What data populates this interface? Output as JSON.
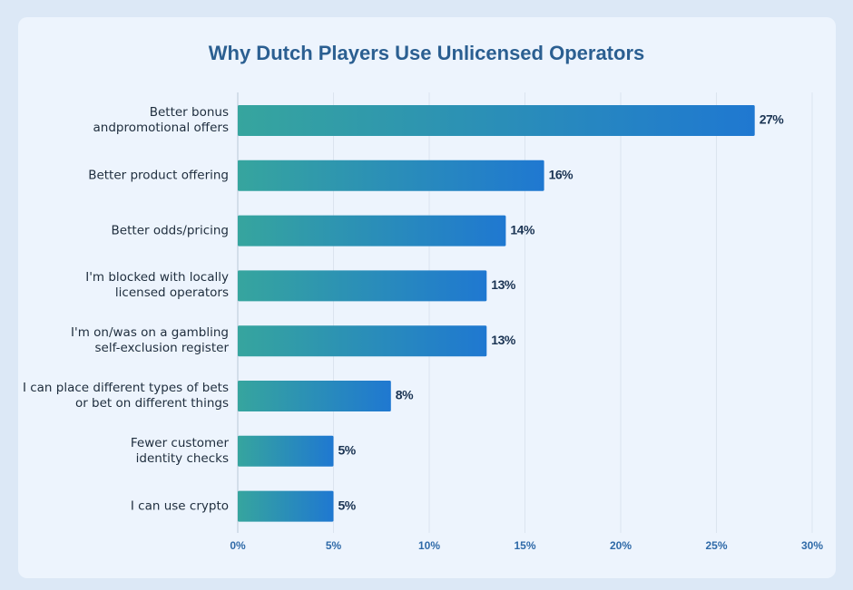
{
  "chart_data": {
    "type": "bar",
    "orientation": "horizontal",
    "title": "Why Dutch Players Use Unlicensed Operators",
    "categories": [
      "Better bonus\nandpromotional offers",
      "Better product offering",
      "Better odds/pricing",
      "I'm blocked with locally\nlicensed operators",
      "I'm on/was on a gambling\nself-exclusion register",
      "I can place different types of bets\nor bet on different things",
      "Fewer customer\nidentity checks",
      "I can use crypto"
    ],
    "values": [
      27,
      16,
      14,
      13,
      13,
      8,
      5,
      5
    ],
    "value_labels": [
      "27%",
      "16%",
      "14%",
      "13%",
      "13%",
      "8%",
      "5%",
      "5%"
    ],
    "colors": [
      "#36a59e",
      "#1f78d1"
    ],
    "xlim": [
      0,
      30
    ],
    "xticks": [
      {
        "value": 0,
        "label": "0%"
      },
      {
        "value": 5,
        "label": "5%"
      },
      {
        "value": 10,
        "label": "10%"
      },
      {
        "value": 15,
        "label": "15%"
      },
      {
        "value": 20,
        "label": "20%"
      },
      {
        "value": 25,
        "label": "25%"
      },
      {
        "value": 30,
        "label": "30%"
      }
    ],
    "grid": true
  }
}
